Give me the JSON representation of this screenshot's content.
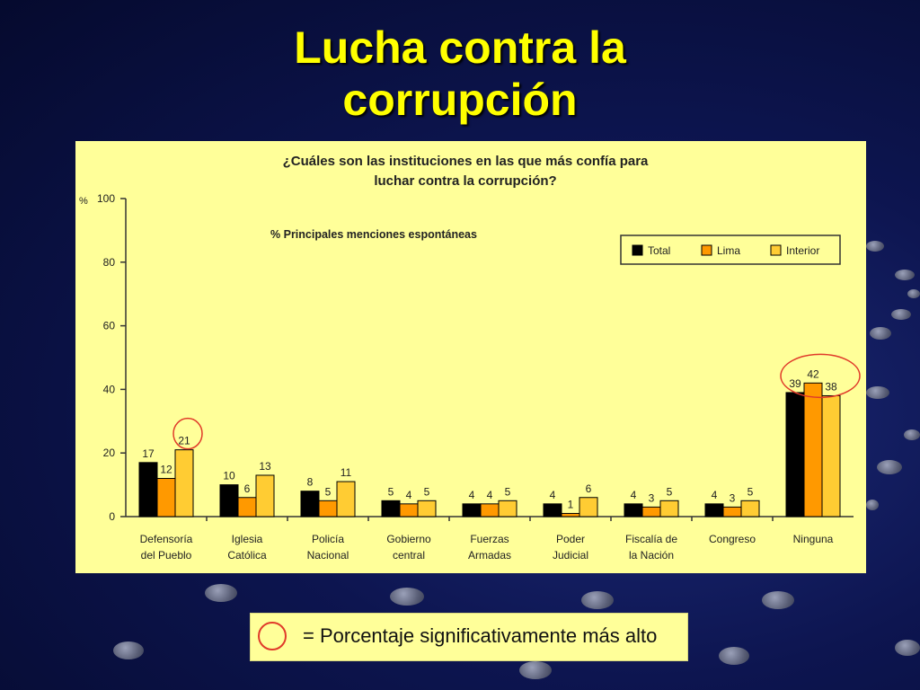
{
  "slide": {
    "title_line1": "Lucha contra la",
    "title_line2": "corrupción"
  },
  "footnote": {
    "text": "= Porcentaje significativamente más alto"
  },
  "colors": {
    "Total": "#000000",
    "Lima": "#ff9900",
    "Interior": "#ffcc33",
    "highlight_circle": "#e03a2a",
    "panel": "#ffff99"
  },
  "chart_data": {
    "type": "bar",
    "title_line1": "¿Cuáles son las instituciones en las que más confía para",
    "title_line2": "luchar contra la corrupción?",
    "subtitle": "% Principales menciones espontáneas",
    "ylabel": "%",
    "ylim": [
      0,
      100
    ],
    "yticks": [
      0,
      20,
      40,
      60,
      80,
      100
    ],
    "legend_position": "top-right",
    "categories": [
      [
        "Defensoría",
        "del Pueblo"
      ],
      [
        "Iglesia",
        "Católica"
      ],
      [
        "Policía",
        "Nacional"
      ],
      [
        "Gobierno",
        "central"
      ],
      [
        "Fuerzas",
        "Armadas"
      ],
      [
        "Poder",
        "Judicial"
      ],
      [
        "Fiscalía de",
        "la Nación"
      ],
      [
        "Congreso"
      ],
      [
        "Ninguna"
      ]
    ],
    "series": [
      {
        "name": "Total",
        "values": [
          17,
          10,
          8,
          5,
          4,
          4,
          4,
          4,
          39
        ]
      },
      {
        "name": "Lima",
        "values": [
          12,
          6,
          5,
          4,
          4,
          1,
          3,
          3,
          42
        ]
      },
      {
        "name": "Interior",
        "values": [
          21,
          13,
          11,
          5,
          5,
          6,
          5,
          5,
          38
        ]
      }
    ],
    "highlights": [
      {
        "category": 0,
        "series": "Interior"
      },
      {
        "category": 8,
        "series": "all"
      }
    ]
  }
}
